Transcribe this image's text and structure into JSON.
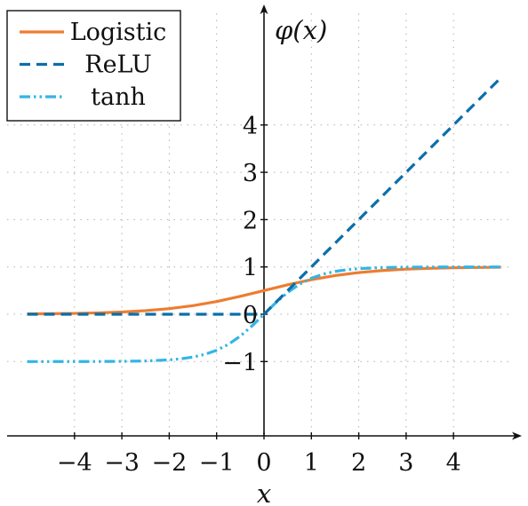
{
  "chart_data": {
    "type": "line",
    "xlabel": "x",
    "ylabel": "φ(x)",
    "xlim": [
      -5.5,
      5.5
    ],
    "ylim": [
      -2.6,
      6.6
    ],
    "xticks": [
      -4,
      -3,
      -2,
      -1,
      0,
      1,
      2,
      3,
      4
    ],
    "xtick_labels": [
      "−4",
      "−3",
      "−2",
      "−1",
      "0",
      "1",
      "2",
      "3",
      "4"
    ],
    "yticks": [
      -1,
      0,
      1,
      2,
      3,
      4
    ],
    "ytick_labels": [
      "−1",
      "0",
      "1",
      "2",
      "3",
      "4"
    ],
    "grid": true,
    "legend_position": "top-left",
    "series": [
      {
        "name": "Logistic",
        "color": "#ed7d31",
        "dash": "solid",
        "x": [
          -5,
          -4.5,
          -4,
          -3.5,
          -3,
          -2.5,
          -2,
          -1.5,
          -1,
          -0.5,
          0,
          0.5,
          1,
          1.5,
          2,
          2.5,
          3,
          3.5,
          4,
          4.5,
          5
        ],
        "y": [
          0.0067,
          0.011,
          0.018,
          0.029,
          0.047,
          0.076,
          0.119,
          0.182,
          0.269,
          0.378,
          0.5,
          0.622,
          0.731,
          0.818,
          0.881,
          0.924,
          0.953,
          0.971,
          0.982,
          0.989,
          0.993
        ]
      },
      {
        "name": "ReLU",
        "color": "#0b6ea8",
        "dash": "dashed",
        "x": [
          -5,
          0,
          5
        ],
        "y": [
          0,
          0,
          5
        ]
      },
      {
        "name": "tanh",
        "color": "#33b5e5",
        "dash": "dashdotdot",
        "x": [
          -5,
          -4.5,
          -4,
          -3.5,
          -3,
          -2.5,
          -2,
          -1.75,
          -1.5,
          -1.25,
          -1,
          -0.75,
          -0.5,
          -0.25,
          0,
          0.25,
          0.5,
          0.75,
          1,
          1.25,
          1.5,
          1.75,
          2,
          2.5,
          3,
          3.5,
          4,
          4.5,
          5
        ],
        "y": [
          -0.9999,
          -0.9998,
          -0.9993,
          -0.9982,
          -0.9951,
          -0.9866,
          -0.964,
          -0.941,
          -0.905,
          -0.848,
          -0.762,
          -0.635,
          -0.462,
          -0.245,
          0,
          0.245,
          0.462,
          0.635,
          0.762,
          0.848,
          0.905,
          0.941,
          0.964,
          0.9866,
          0.9951,
          0.9982,
          0.9993,
          0.9998,
          0.9999
        ]
      }
    ]
  }
}
